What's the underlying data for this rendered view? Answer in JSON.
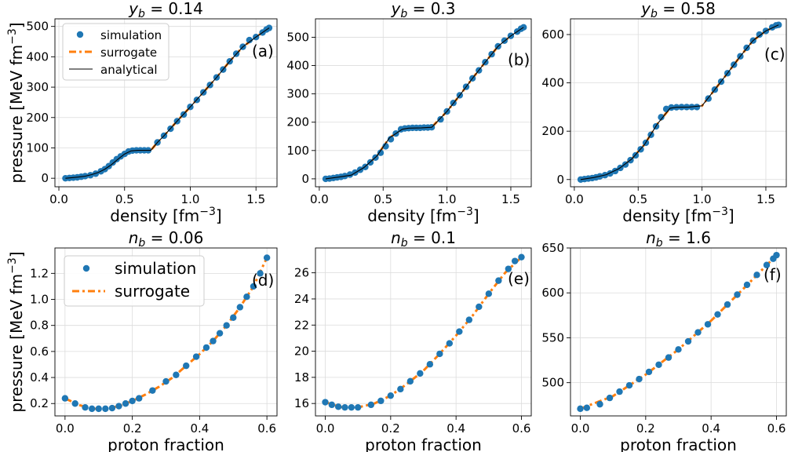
{
  "colors": {
    "simulation": "#1f77b4",
    "surrogate": "#ff7f0e",
    "analytical": "#000000",
    "grid": "#dcdcdc"
  },
  "legend_top": {
    "simulation": "simulation",
    "surrogate": "surrogate",
    "analytical": "analytical",
    "placement": "upper-left"
  },
  "legend_bottom": {
    "simulation": "simulation",
    "surrogate": "surrogate",
    "placement": "upper-left"
  },
  "chart_data": [
    {
      "type": "scatter",
      "panel": "a",
      "tag": "(a)",
      "title_var": "y",
      "title_sub": "b",
      "title_value": "0.14",
      "xlabel": "density [fm",
      "xlabel_exp": "−3",
      "xlabel_end": "]",
      "ylabel": "pressure [MeV fm",
      "ylabel_exp": "−3",
      "ylabel_end": "]",
      "xlim": [
        -0.03,
        1.66
      ],
      "ylim": [
        -28,
        525
      ],
      "xticks": [
        "0.0",
        "0.5",
        "1.0",
        "1.5"
      ],
      "xtick_values": [
        0.0,
        0.5,
        1.0,
        1.5
      ],
      "yticks": [
        "0",
        "100",
        "200",
        "300",
        "400",
        "500"
      ],
      "ytick_values": [
        0,
        100,
        200,
        300,
        400,
        500
      ],
      "series": [
        {
          "name": "simulation",
          "marker": "dot",
          "x": [
            0.05,
            0.08,
            0.11,
            0.14,
            0.17,
            0.2,
            0.24,
            0.28,
            0.32,
            0.35,
            0.38,
            0.41,
            0.44,
            0.47,
            0.5,
            0.53,
            0.56,
            0.59,
            0.62,
            0.65,
            0.68,
            0.75,
            0.8,
            0.85,
            0.9,
            0.95,
            1.0,
            1.05,
            1.1,
            1.15,
            1.2,
            1.25,
            1.3,
            1.35,
            1.4,
            1.45,
            1.5,
            1.55,
            1.58,
            1.6
          ],
          "y": [
            0,
            1,
            2,
            3,
            5,
            7,
            10,
            15,
            23,
            30,
            40,
            52,
            63,
            72,
            80,
            88,
            91,
            92,
            92,
            92,
            92,
            118,
            140,
            163,
            188,
            210,
            235,
            258,
            283,
            307,
            332,
            358,
            385,
            410,
            433,
            455,
            465,
            480,
            490,
            495
          ]
        },
        {
          "name": "surrogate",
          "marker": "dashdot",
          "x": [
            0.05,
            0.1,
            0.15,
            0.2,
            0.25,
            0.3,
            0.35,
            0.4,
            0.45,
            0.5,
            0.55,
            0.6,
            0.65,
            0.7,
            0.75,
            0.8,
            0.9,
            1.0,
            1.1,
            1.2,
            1.3,
            1.4,
            1.5,
            1.6
          ],
          "y": [
            0,
            2,
            4,
            7,
            12,
            19,
            30,
            45,
            63,
            80,
            90,
            92,
            92,
            92,
            118,
            140,
            188,
            235,
            283,
            332,
            385,
            433,
            465,
            495
          ]
        },
        {
          "name": "analytical",
          "marker": "line",
          "x": [
            0.05,
            0.1,
            0.15,
            0.2,
            0.25,
            0.3,
            0.35,
            0.4,
            0.45,
            0.5,
            0.55,
            0.6,
            0.65,
            0.7,
            0.75,
            0.8,
            0.9,
            1.0,
            1.1,
            1.2,
            1.3,
            1.4,
            1.5,
            1.6
          ],
          "y": [
            0,
            2,
            4,
            7,
            12,
            19,
            30,
            45,
            63,
            80,
            90,
            92,
            92,
            92,
            118,
            140,
            188,
            235,
            283,
            332,
            385,
            433,
            465,
            495
          ]
        }
      ]
    },
    {
      "type": "scatter",
      "panel": "b",
      "tag": "(b)",
      "title_var": "y",
      "title_sub": "b",
      "title_value": "0.3",
      "xlabel": "density [fm",
      "xlabel_exp": "−3",
      "xlabel_end": "]",
      "xlim": [
        -0.03,
        1.66
      ],
      "ylim": [
        -28,
        565
      ],
      "xticks": [
        "0.0",
        "0.5",
        "1.0",
        "1.5"
      ],
      "xtick_values": [
        0.0,
        0.5,
        1.0,
        1.5
      ],
      "yticks": [
        "0",
        "100",
        "200",
        "300",
        "400",
        "500"
      ],
      "ytick_values": [
        0,
        100,
        200,
        300,
        400,
        500
      ],
      "series": [
        {
          "name": "simulation",
          "marker": "dot",
          "x": [
            0.05,
            0.08,
            0.11,
            0.14,
            0.17,
            0.2,
            0.24,
            0.28,
            0.32,
            0.36,
            0.4,
            0.44,
            0.48,
            0.52,
            0.56,
            0.6,
            0.64,
            0.67,
            0.7,
            0.73,
            0.76,
            0.79,
            0.82,
            0.85,
            0.88,
            0.95,
            1.0,
            1.05,
            1.1,
            1.15,
            1.2,
            1.25,
            1.3,
            1.35,
            1.4,
            1.45,
            1.5,
            1.55,
            1.58,
            1.6
          ],
          "y": [
            0,
            1,
            3,
            5,
            7,
            10,
            15,
            22,
            32,
            42,
            58,
            75,
            92,
            115,
            140,
            160,
            175,
            178,
            179,
            180,
            180,
            180,
            181,
            181,
            182,
            210,
            238,
            268,
            295,
            325,
            355,
            383,
            412,
            440,
            468,
            488,
            505,
            520,
            530,
            535
          ]
        },
        {
          "name": "surrogate",
          "marker": "dashdot",
          "x": [
            0.05,
            0.15,
            0.25,
            0.35,
            0.45,
            0.55,
            0.65,
            0.7,
            0.8,
            0.88,
            1.0,
            1.1,
            1.2,
            1.3,
            1.4,
            1.5,
            1.6
          ],
          "y": [
            0,
            6,
            13,
            40,
            80,
            145,
            175,
            179,
            180,
            182,
            238,
            295,
            355,
            412,
            468,
            505,
            535
          ]
        },
        {
          "name": "analytical",
          "marker": "line",
          "x": [
            0.05,
            0.15,
            0.25,
            0.35,
            0.45,
            0.55,
            0.65,
            0.7,
            0.8,
            0.88,
            1.0,
            1.1,
            1.2,
            1.3,
            1.4,
            1.5,
            1.6
          ],
          "y": [
            0,
            6,
            13,
            40,
            80,
            145,
            175,
            179,
            180,
            182,
            238,
            295,
            355,
            412,
            468,
            505,
            535
          ]
        }
      ]
    },
    {
      "type": "scatter",
      "panel": "c",
      "tag": "(c)",
      "title_var": "y",
      "title_sub": "b",
      "title_value": "0.58",
      "xlabel": "density [fm",
      "xlabel_exp": "−3",
      "xlabel_end": "]",
      "xlim": [
        -0.03,
        1.66
      ],
      "ylim": [
        -30,
        665
      ],
      "xticks": [
        "0.0",
        "0.5",
        "1.0",
        "1.5"
      ],
      "xtick_values": [
        0.0,
        0.5,
        1.0,
        1.5
      ],
      "yticks": [
        "0",
        "200",
        "400",
        "600"
      ],
      "ytick_values": [
        0,
        200,
        400,
        600
      ],
      "series": [
        {
          "name": "simulation",
          "marker": "dot",
          "x": [
            0.05,
            0.08,
            0.11,
            0.14,
            0.17,
            0.2,
            0.24,
            0.28,
            0.32,
            0.36,
            0.4,
            0.44,
            0.48,
            0.52,
            0.56,
            0.6,
            0.64,
            0.68,
            0.72,
            0.76,
            0.8,
            0.84,
            0.88,
            0.92,
            0.96,
            1.05,
            1.1,
            1.15,
            1.2,
            1.25,
            1.3,
            1.35,
            1.4,
            1.45,
            1.5,
            1.55,
            1.58,
            1.6
          ],
          "y": [
            0,
            2,
            4,
            6,
            9,
            13,
            18,
            25,
            35,
            48,
            62,
            80,
            100,
            125,
            152,
            185,
            220,
            258,
            292,
            298,
            299,
            300,
            300,
            300,
            300,
            335,
            372,
            405,
            440,
            475,
            510,
            545,
            575,
            600,
            615,
            630,
            638,
            640
          ]
        },
        {
          "name": "surrogate",
          "marker": "dashdot",
          "x": [
            0.05,
            0.15,
            0.25,
            0.35,
            0.45,
            0.55,
            0.65,
            0.75,
            0.8,
            0.9,
            1.0,
            1.1,
            1.2,
            1.3,
            1.4,
            1.5,
            1.6
          ],
          "y": [
            0,
            8,
            20,
            45,
            85,
            145,
            230,
            295,
            299,
            300,
            305,
            372,
            440,
            510,
            575,
            615,
            640
          ]
        },
        {
          "name": "analytical",
          "marker": "line",
          "x": [
            0.05,
            0.15,
            0.25,
            0.35,
            0.45,
            0.55,
            0.65,
            0.75,
            0.8,
            0.9,
            1.0,
            1.1,
            1.2,
            1.3,
            1.4,
            1.5,
            1.6
          ],
          "y": [
            0,
            8,
            20,
            45,
            85,
            145,
            230,
            295,
            299,
            300,
            305,
            372,
            440,
            510,
            575,
            615,
            640
          ]
        }
      ]
    },
    {
      "type": "scatter",
      "panel": "d",
      "tag": "(d)",
      "title_var": "n",
      "title_sub": "b",
      "title_value": "0.06",
      "xlabel": "proton fraction",
      "ylabel": "pressure [MeV fm",
      "ylabel_exp": "−3",
      "ylabel_end": "]",
      "xlim": [
        -0.03,
        0.63
      ],
      "ylim": [
        0.105,
        1.395
      ],
      "xticks": [
        "0.0",
        "0.2",
        "0.4",
        "0.6"
      ],
      "xtick_values": [
        0.0,
        0.2,
        0.4,
        0.6
      ],
      "yticks": [
        "0.2",
        "0.4",
        "0.6",
        "0.8",
        "1.0",
        "1.2"
      ],
      "ytick_values": [
        0.2,
        0.4,
        0.6,
        0.8,
        1.0,
        1.2
      ],
      "series": [
        {
          "name": "simulation",
          "marker": "dot",
          "x": [
            0.0,
            0.03,
            0.06,
            0.08,
            0.1,
            0.12,
            0.14,
            0.16,
            0.18,
            0.2,
            0.22,
            0.26,
            0.3,
            0.33,
            0.36,
            0.39,
            0.42,
            0.44,
            0.46,
            0.48,
            0.5,
            0.52,
            0.54,
            0.56,
            0.58,
            0.6
          ],
          "y": [
            0.24,
            0.2,
            0.17,
            0.16,
            0.16,
            0.16,
            0.165,
            0.18,
            0.2,
            0.22,
            0.24,
            0.3,
            0.37,
            0.42,
            0.49,
            0.56,
            0.63,
            0.68,
            0.74,
            0.8,
            0.86,
            0.94,
            1.02,
            1.1,
            1.2,
            1.32
          ]
        },
        {
          "name": "surrogate",
          "marker": "dashdot",
          "x": [
            0.0,
            0.04,
            0.08,
            0.12,
            0.16,
            0.2,
            0.24,
            0.28,
            0.32,
            0.36,
            0.4,
            0.44,
            0.48,
            0.52,
            0.56,
            0.6
          ],
          "y": [
            0.24,
            0.19,
            0.16,
            0.16,
            0.18,
            0.22,
            0.27,
            0.33,
            0.4,
            0.49,
            0.58,
            0.68,
            0.8,
            0.94,
            1.1,
            1.32
          ]
        }
      ]
    },
    {
      "type": "scatter",
      "panel": "e",
      "tag": "(e)",
      "title_var": "n",
      "title_sub": "b",
      "title_value": "0.1",
      "xlabel": "proton fraction",
      "xlim": [
        -0.03,
        0.63
      ],
      "ylim": [
        15.05,
        27.9
      ],
      "xticks": [
        "0.0",
        "0.2",
        "0.4",
        "0.6"
      ],
      "xtick_values": [
        0.0,
        0.2,
        0.4,
        0.6
      ],
      "yticks": [
        "16",
        "18",
        "20",
        "22",
        "24",
        "26"
      ],
      "ytick_values": [
        16,
        18,
        20,
        22,
        24,
        26
      ],
      "series": [
        {
          "name": "simulation",
          "marker": "dot",
          "x": [
            0.0,
            0.02,
            0.04,
            0.06,
            0.08,
            0.1,
            0.14,
            0.17,
            0.2,
            0.23,
            0.26,
            0.29,
            0.32,
            0.35,
            0.38,
            0.41,
            0.44,
            0.47,
            0.5,
            0.53,
            0.56,
            0.58,
            0.6
          ],
          "y": [
            16.1,
            15.9,
            15.75,
            15.7,
            15.7,
            15.7,
            15.9,
            16.2,
            16.6,
            17.1,
            17.7,
            18.3,
            19.0,
            19.8,
            20.6,
            21.5,
            22.4,
            23.4,
            24.4,
            25.4,
            26.3,
            26.9,
            27.2
          ]
        },
        {
          "name": "surrogate",
          "marker": "dashdot",
          "x": [
            0.0,
            0.05,
            0.1,
            0.15,
            0.2,
            0.25,
            0.3,
            0.35,
            0.4,
            0.45,
            0.5,
            0.55,
            0.6
          ],
          "y": [
            16.1,
            15.72,
            15.7,
            16.0,
            16.6,
            17.5,
            18.5,
            19.8,
            21.2,
            22.7,
            24.4,
            26.0,
            27.2
          ]
        }
      ]
    },
    {
      "type": "scatter",
      "panel": "f",
      "tag": "(f)",
      "title_var": "n",
      "title_sub": "b",
      "title_value": "1.6",
      "xlabel": "proton fraction",
      "xlim": [
        -0.03,
        0.63
      ],
      "ylim": [
        463,
        650
      ],
      "xticks": [
        "0.0",
        "0.2",
        "0.4",
        "0.6"
      ],
      "xtick_values": [
        0.0,
        0.2,
        0.4,
        0.6
      ],
      "yticks": [
        "500",
        "550",
        "600",
        "650"
      ],
      "ytick_values": [
        500,
        550,
        600,
        650
      ],
      "series": [
        {
          "name": "simulation",
          "marker": "dot",
          "x": [
            0.0,
            0.02,
            0.06,
            0.09,
            0.12,
            0.15,
            0.18,
            0.21,
            0.24,
            0.27,
            0.3,
            0.33,
            0.36,
            0.39,
            0.42,
            0.45,
            0.48,
            0.51,
            0.54,
            0.57,
            0.59,
            0.6
          ],
          "y": [
            471,
            472,
            476,
            483,
            490,
            497,
            504,
            512,
            520,
            528,
            537,
            546,
            556,
            565,
            576,
            587,
            598,
            609,
            620,
            631,
            638,
            642
          ]
        },
        {
          "name": "surrogate",
          "marker": "dashdot",
          "x": [
            0.0,
            0.1,
            0.2,
            0.3,
            0.4,
            0.5,
            0.6
          ],
          "y": [
            471,
            485,
            509,
            537,
            569,
            605,
            642
          ]
        }
      ]
    }
  ]
}
